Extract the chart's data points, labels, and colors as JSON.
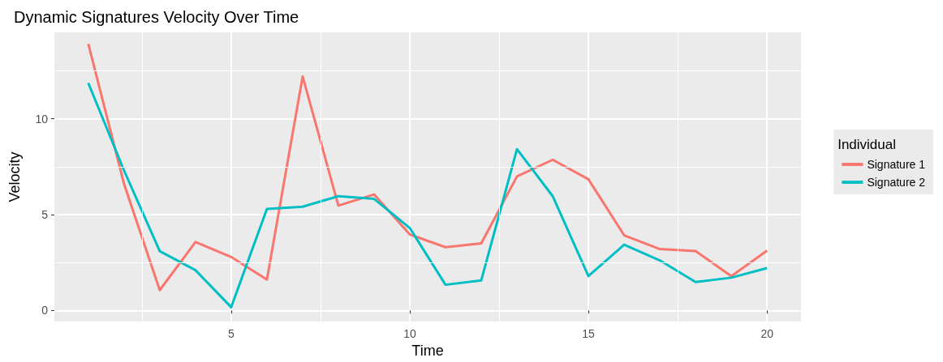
{
  "chart_data": {
    "type": "line",
    "title": "Dynamic Signatures Velocity Over Time",
    "xlabel": "Time",
    "ylabel": "Velocity",
    "legend_title": "Individual",
    "legend": "right",
    "grid": true,
    "line_style": "solid",
    "marker": "none",
    "x": [
      1,
      2,
      3,
      4,
      5,
      6,
      7,
      8,
      9,
      10,
      11,
      12,
      13,
      14,
      15,
      16,
      17,
      18,
      19,
      20
    ],
    "series": [
      {
        "name": "Signature 1",
        "color": "#f8766d",
        "values": [
          13.9,
          6.6,
          1.06,
          3.57,
          2.79,
          1.61,
          12.2,
          5.47,
          6.05,
          3.96,
          3.3,
          3.5,
          6.99,
          7.86,
          6.84,
          3.92,
          3.2,
          3.1,
          1.79,
          3.12
        ]
      },
      {
        "name": "Signature 2",
        "color": "#00bfc4",
        "values": [
          11.86,
          7.3,
          3.09,
          2.1,
          0.17,
          5.29,
          5.41,
          5.96,
          5.82,
          4.3,
          1.34,
          1.57,
          8.41,
          5.96,
          1.79,
          3.43,
          2.61,
          1.48,
          1.71,
          2.21
        ]
      }
    ],
    "xlim": [
      0.05,
      20.95
    ],
    "xticks": [
      5,
      10,
      15,
      20
    ],
    "ylim": [
      -0.58,
      14.5
    ],
    "yticks": [
      0,
      5,
      10
    ]
  }
}
